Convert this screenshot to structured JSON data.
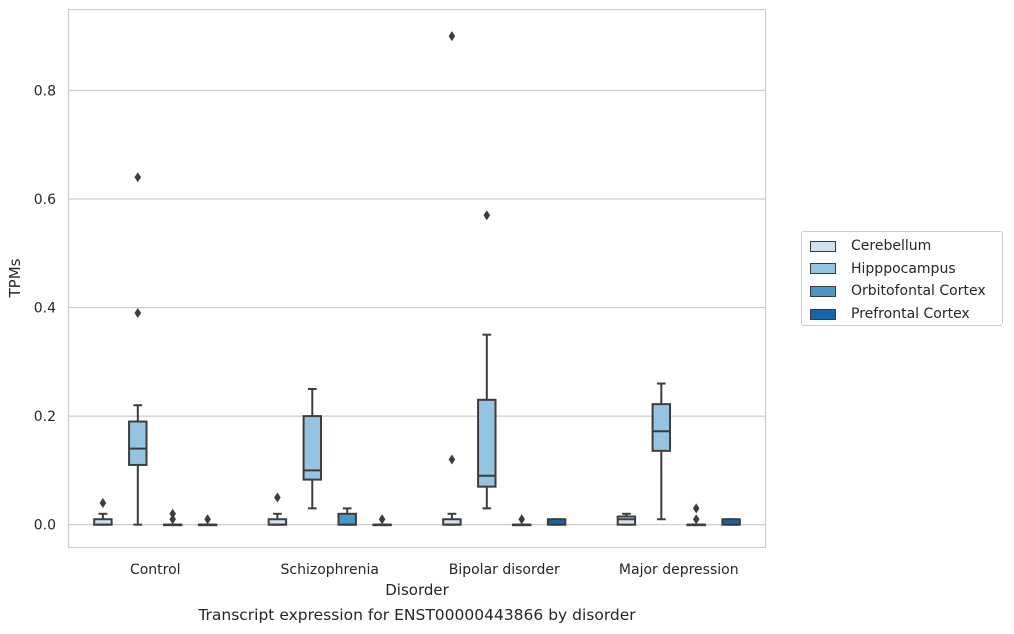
{
  "caption": "Transcript expression for ENST00000443866 by disorder",
  "chart_data": {
    "type": "box",
    "xlabel": "Disorder",
    "ylabel": "TPMs",
    "categories": [
      "Control",
      "Schizophrenia",
      "Bipolar disorder",
      "Major depression"
    ],
    "ylim": [
      -0.043,
      0.95
    ],
    "yticks": [
      "0.0",
      "0.2",
      "0.4",
      "0.6",
      "0.8"
    ],
    "grid": "horizontal",
    "legend_position": "center-right",
    "series": [
      {
        "name": "Cerebellum",
        "color": "#d0e1f2",
        "boxes": [
          {
            "q1": 0.0,
            "median": 0.0,
            "q3": 0.01,
            "whisker_low": 0.0,
            "whisker_high": 0.02,
            "outliers": [
              0.04
            ]
          },
          {
            "q1": 0.0,
            "median": 0.0,
            "q3": 0.01,
            "whisker_low": 0.0,
            "whisker_high": 0.02,
            "outliers": [
              0.05
            ]
          },
          {
            "q1": 0.0,
            "median": 0.0,
            "q3": 0.01,
            "whisker_low": 0.0,
            "whisker_high": 0.02,
            "outliers": [
              0.12,
              0.9
            ]
          },
          {
            "q1": 0.0,
            "median": 0.01,
            "q3": 0.015,
            "whisker_low": 0.0,
            "whisker_high": 0.02,
            "outliers": []
          }
        ]
      },
      {
        "name": "Hipppocampus",
        "color": "#94c4df",
        "boxes": [
          {
            "q1": 0.11,
            "median": 0.14,
            "q3": 0.19,
            "whisker_low": 0.0,
            "whisker_high": 0.22,
            "outliers": [
              0.39,
              0.64
            ]
          },
          {
            "q1": 0.083,
            "median": 0.1,
            "q3": 0.2,
            "whisker_low": 0.03,
            "whisker_high": 0.25,
            "outliers": []
          },
          {
            "q1": 0.07,
            "median": 0.09,
            "q3": 0.23,
            "whisker_low": 0.03,
            "whisker_high": 0.35,
            "outliers": [
              0.57
            ]
          },
          {
            "q1": 0.136,
            "median": 0.172,
            "q3": 0.222,
            "whisker_low": 0.01,
            "whisker_high": 0.26,
            "outliers": []
          }
        ]
      },
      {
        "name": "Orbitofontal Cortex",
        "color": "#4a98c9",
        "boxes": [
          {
            "q1": 0.0,
            "median": 0.0,
            "q3": 0.0,
            "whisker_low": 0.0,
            "whisker_high": 0.0,
            "outliers": [
              0.01,
              0.02
            ]
          },
          {
            "q1": 0.0,
            "median": 0.0,
            "q3": 0.02,
            "whisker_low": 0.0,
            "whisker_high": 0.03,
            "outliers": []
          },
          {
            "q1": 0.0,
            "median": 0.0,
            "q3": 0.0,
            "whisker_low": 0.0,
            "whisker_high": 0.0,
            "outliers": [
              0.01
            ]
          },
          {
            "q1": 0.0,
            "median": 0.0,
            "q3": 0.0,
            "whisker_low": 0.0,
            "whisker_high": 0.0,
            "outliers": [
              0.01,
              0.03
            ]
          }
        ]
      },
      {
        "name": "Prefrontal Cortex",
        "color": "#1764ab",
        "boxes": [
          {
            "q1": 0.0,
            "median": 0.0,
            "q3": 0.0,
            "whisker_low": 0.0,
            "whisker_high": 0.0,
            "outliers": [
              0.01
            ]
          },
          {
            "q1": 0.0,
            "median": 0.0,
            "q3": 0.0,
            "whisker_low": 0.0,
            "whisker_high": 0.0,
            "outliers": [
              0.01
            ]
          },
          {
            "q1": 0.0,
            "median": 0.0,
            "q3": 0.01,
            "whisker_low": 0.0,
            "whisker_high": 0.01,
            "outliers": []
          },
          {
            "q1": 0.0,
            "median": 0.0,
            "q3": 0.01,
            "whisker_low": 0.0,
            "whisker_high": 0.01,
            "outliers": []
          }
        ]
      }
    ]
  }
}
